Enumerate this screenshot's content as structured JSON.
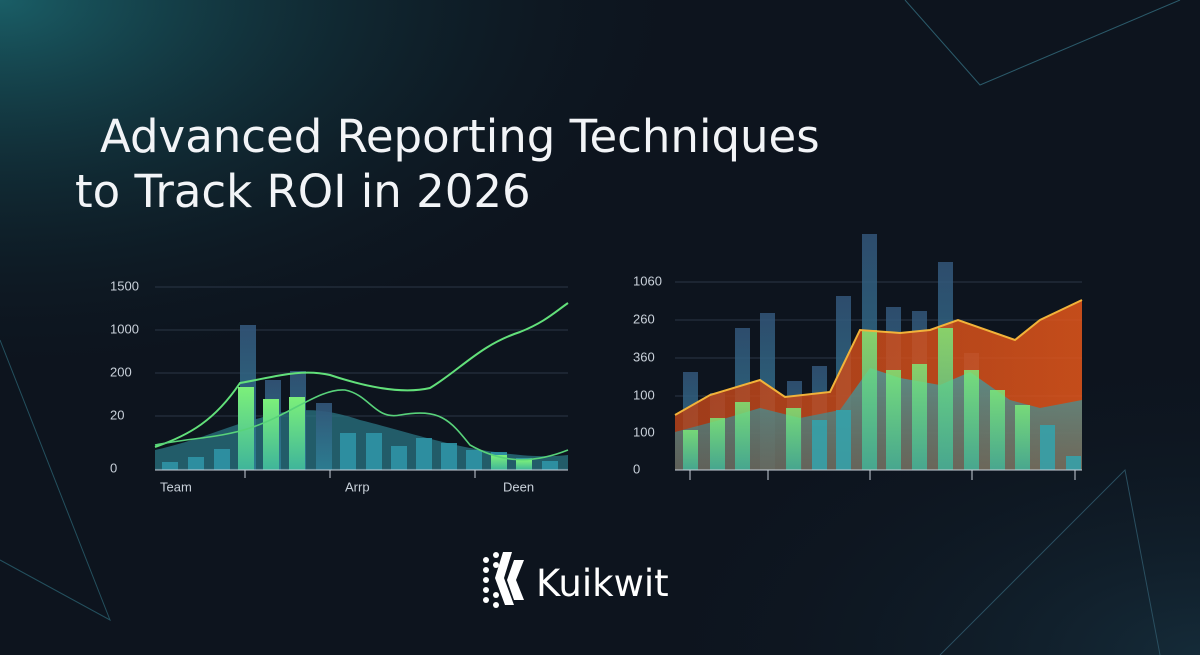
{
  "header": {
    "title_lines": [
      "Advanced Reporting Techniques",
      "to Track ROI in 2026"
    ]
  },
  "left_chart": {
    "y_labels": [
      "1500",
      "1000",
      "200",
      "20",
      "0"
    ],
    "x_labels": [
      "Team",
      "Arrp",
      "Deen"
    ]
  },
  "right_chart": {
    "y_labels": [
      "1060",
      "260",
      "360",
      "100",
      "100",
      "0"
    ]
  },
  "brand": {
    "name": "Kuikwit"
  }
}
